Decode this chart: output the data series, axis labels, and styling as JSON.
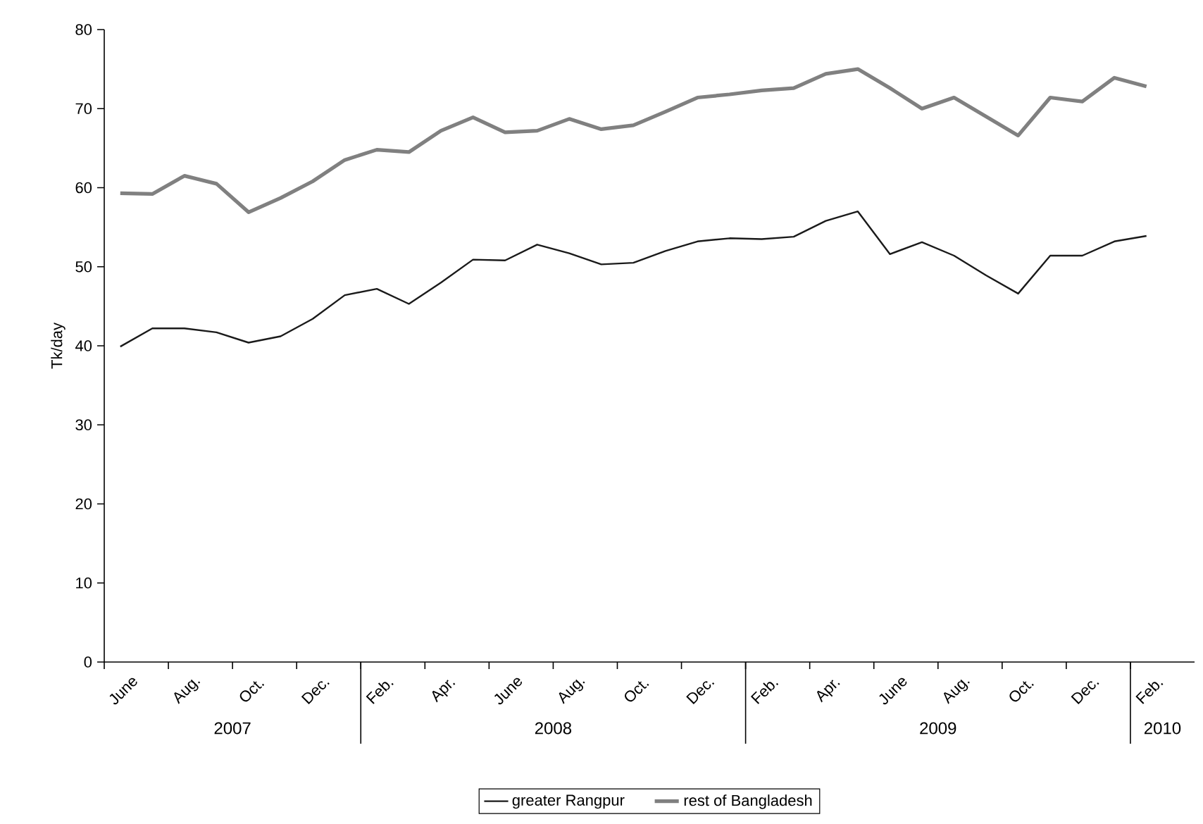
{
  "chart_data": {
    "type": "line",
    "ylabel": "Tk/day",
    "categories": [
      "June",
      null,
      "Aug.",
      null,
      "Oct.",
      null,
      "Dec.",
      null,
      "Feb.",
      null,
      "Apr.",
      null,
      "June",
      null,
      "Aug.",
      null,
      "Oct.",
      null,
      "Dec.",
      null,
      "Feb.",
      null,
      "Apr.",
      null,
      "June",
      null,
      "Aug.",
      null,
      "Oct.",
      null,
      "Dec.",
      null,
      "Feb."
    ],
    "series": [
      {
        "name": "greater Rangpur",
        "color": "#1a1a1a",
        "values": [
          39.9,
          42.2,
          42.2,
          41.7,
          40.4,
          41.2,
          43.4,
          46.4,
          47.2,
          45.3,
          48.0,
          50.9,
          50.8,
          52.8,
          51.7,
          50.3,
          50.5,
          52.0,
          53.2,
          53.6,
          53.5,
          53.8,
          55.8,
          57.0,
          51.6,
          53.1,
          51.4,
          48.9,
          46.6,
          51.4,
          51.4,
          53.2,
          53.9
        ]
      },
      {
        "name": "rest of Bangladesh",
        "color": "#808080",
        "values": [
          59.3,
          59.2,
          61.5,
          60.5,
          56.9,
          58.7,
          60.8,
          63.5,
          64.8,
          64.5,
          67.2,
          68.9,
          67.0,
          67.2,
          68.7,
          67.4,
          67.9,
          69.6,
          71.4,
          71.8,
          72.3,
          72.6,
          74.4,
          75.0,
          72.6,
          70.0,
          71.4,
          69.0,
          66.6,
          71.4,
          70.9,
          73.9,
          72.8
        ]
      }
    ],
    "ylim": [
      0,
      80
    ],
    "yticks": [
      0,
      10,
      20,
      30,
      40,
      50,
      60,
      70,
      80
    ],
    "annotations": [
      "2007",
      "2008",
      "2009",
      "2010"
    ],
    "legend": "bottom",
    "grid": false,
    "marker": "none",
    "line_style": "solid"
  }
}
